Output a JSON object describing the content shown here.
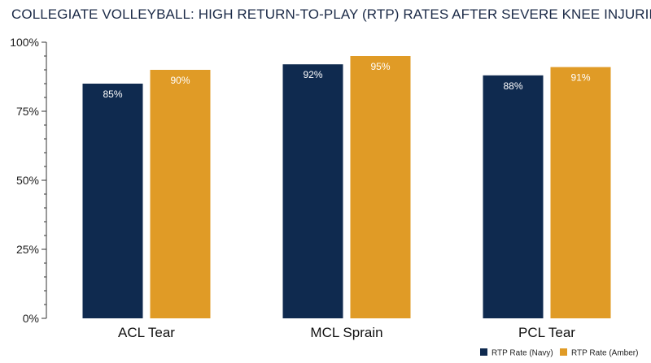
{
  "chart_data": {
    "type": "bar",
    "title": "COLLEGIATE VOLLEYBALL: HIGH RETURN-TO-PLAY (RTP) RATES AFTER SEVERE KNEE INJURIES",
    "xlabel": "",
    "ylabel": "",
    "categories": [
      "ACL Tear",
      "MCL Sprain",
      "PCL Tear"
    ],
    "series": [
      {
        "name": "RTP Rate (Navy)",
        "color": "#0f2a4f",
        "values": [
          85,
          92,
          88
        ],
        "labels": [
          "85%",
          "92%",
          "88%"
        ]
      },
      {
        "name": "RTP Rate (Amber)",
        "color": "#e09b26",
        "values": [
          90,
          95,
          91
        ],
        "labels": [
          "90%",
          "95%",
          "91%"
        ]
      }
    ],
    "ylim": [
      0,
      100
    ],
    "yticks": [
      {
        "value": 0,
        "label": "0%"
      },
      {
        "value": 25,
        "label": "25%"
      },
      {
        "value": 50,
        "label": "50%"
      },
      {
        "value": 75,
        "label": "75%"
      },
      {
        "value": 100,
        "label": "100%"
      }
    ],
    "legend_position": "bottom-right",
    "grid": false
  }
}
